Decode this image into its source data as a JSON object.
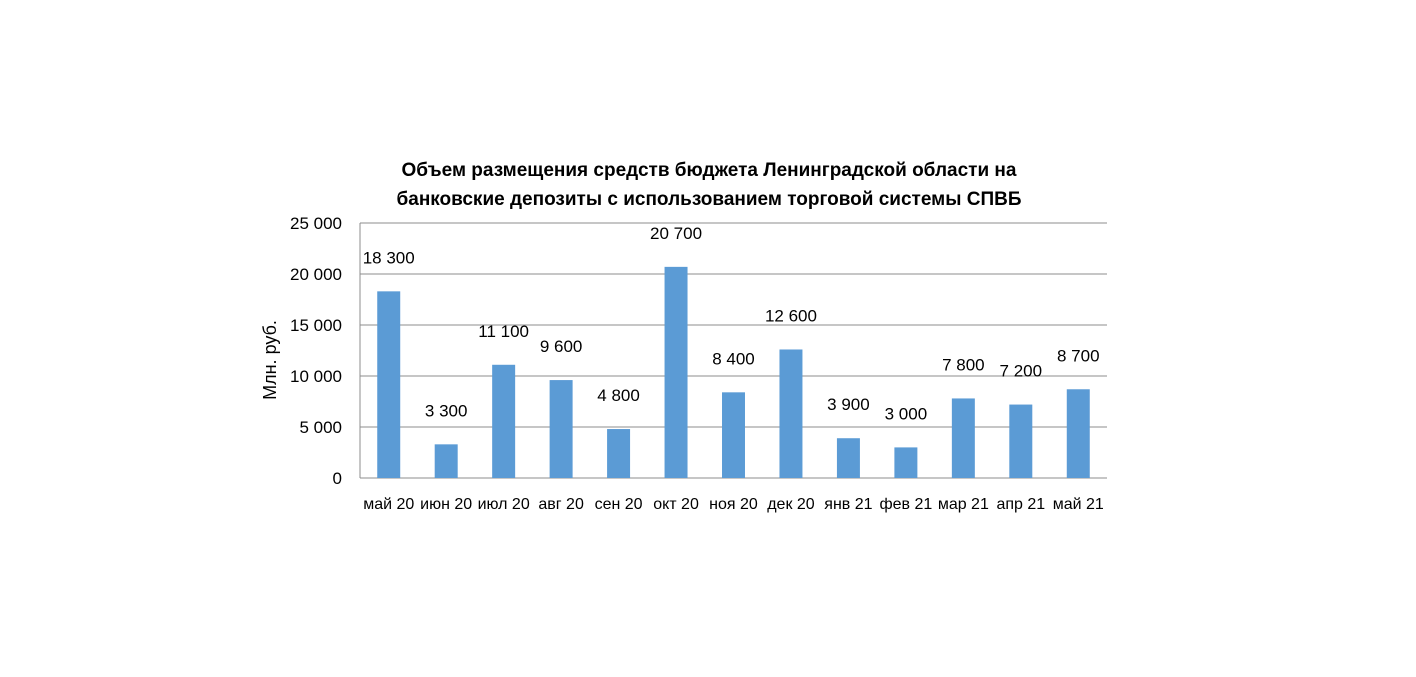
{
  "chart_data": {
    "type": "bar",
    "title": "Объем размещения средств бюджета Ленинградской области на банковские депозиты с использованием торговой системы СПВБ",
    "title_lines": [
      "Объем размещения средств бюджета Ленинградской области на",
      "банковские депозиты с использованием торговой системы СПВБ"
    ],
    "xlabel": "",
    "ylabel": "Млн. руб.",
    "ylim": [
      0,
      25000
    ],
    "yticks": [
      0,
      5000,
      10000,
      15000,
      20000,
      25000
    ],
    "ytick_labels": [
      "0",
      "5 000",
      "10 000",
      "15 000",
      "20 000",
      "25 000"
    ],
    "categories": [
      "май 20",
      "июн 20",
      "июл 20",
      "авг 20",
      "сен 20",
      "окт 20",
      "ноя 20",
      "дек 20",
      "янв 21",
      "фев 21",
      "мар 21",
      "апр 21",
      "май 21"
    ],
    "values": [
      18300,
      3300,
      11100,
      9600,
      4800,
      20700,
      8400,
      12600,
      3900,
      3000,
      7800,
      7200,
      8700
    ],
    "value_labels": [
      "18 300",
      "3 300",
      "11 100",
      "9 600",
      "4 800",
      "20 700",
      "8 400",
      "12 600",
      "3 900",
      "3 000",
      "7 800",
      "7 200",
      "8 700"
    ],
    "bar_color": "#5b9bd5",
    "grid": true,
    "legend": "none"
  }
}
